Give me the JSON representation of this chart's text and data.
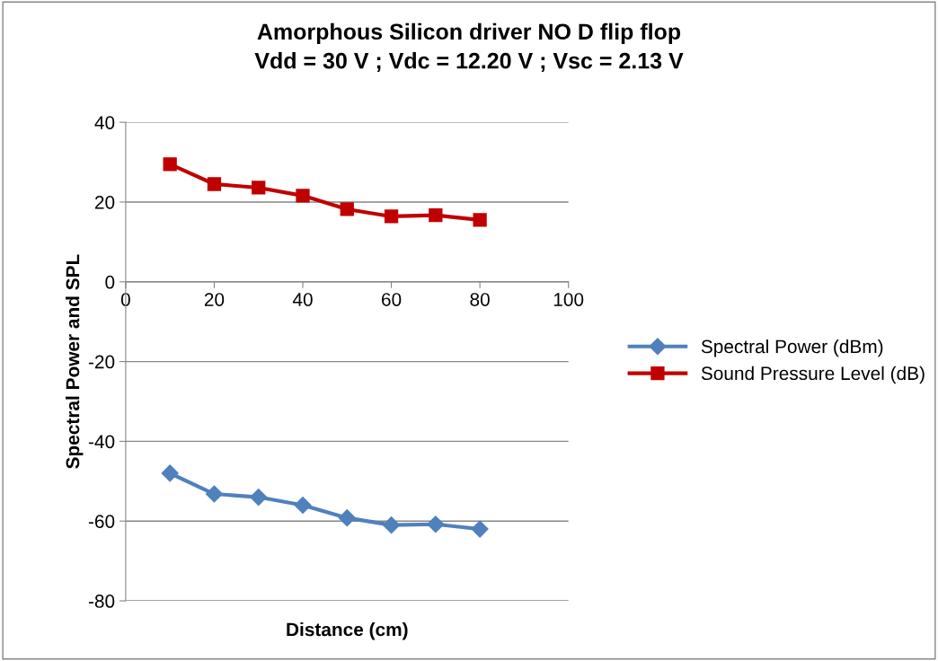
{
  "chart_data": {
    "type": "line",
    "title": "Amorphous Silicon driver NO D flip flop\nVdd = 30 V ; Vdc = 12.20 V ; Vsc = 2.13 V",
    "xlabel": "Distance (cm)",
    "ylabel": "Spectral Power and SPL",
    "x": [
      10,
      20,
      30,
      40,
      50,
      60,
      70,
      80
    ],
    "series": [
      {
        "name": "Spectral Power (dBm)",
        "color": "#4f81bd",
        "marker": "diamond",
        "values": [
          -48,
          -53.2,
          -54,
          -56,
          -59.2,
          -61,
          -60.8,
          -62
        ]
      },
      {
        "name": "Sound Pressure Level (dB)",
        "color": "#c00000",
        "marker": "square",
        "values": [
          29.5,
          24.5,
          23.6,
          21.6,
          18.2,
          16.4,
          16.7,
          15.5
        ]
      }
    ],
    "xlim": [
      0,
      100
    ],
    "xticks": [
      0,
      20,
      40,
      60,
      80,
      100
    ],
    "ylim": [
      -80,
      40
    ],
    "yticks": [
      -80,
      -60,
      -40,
      -20,
      0,
      20,
      40
    ],
    "grid": "y",
    "legend": "right"
  }
}
